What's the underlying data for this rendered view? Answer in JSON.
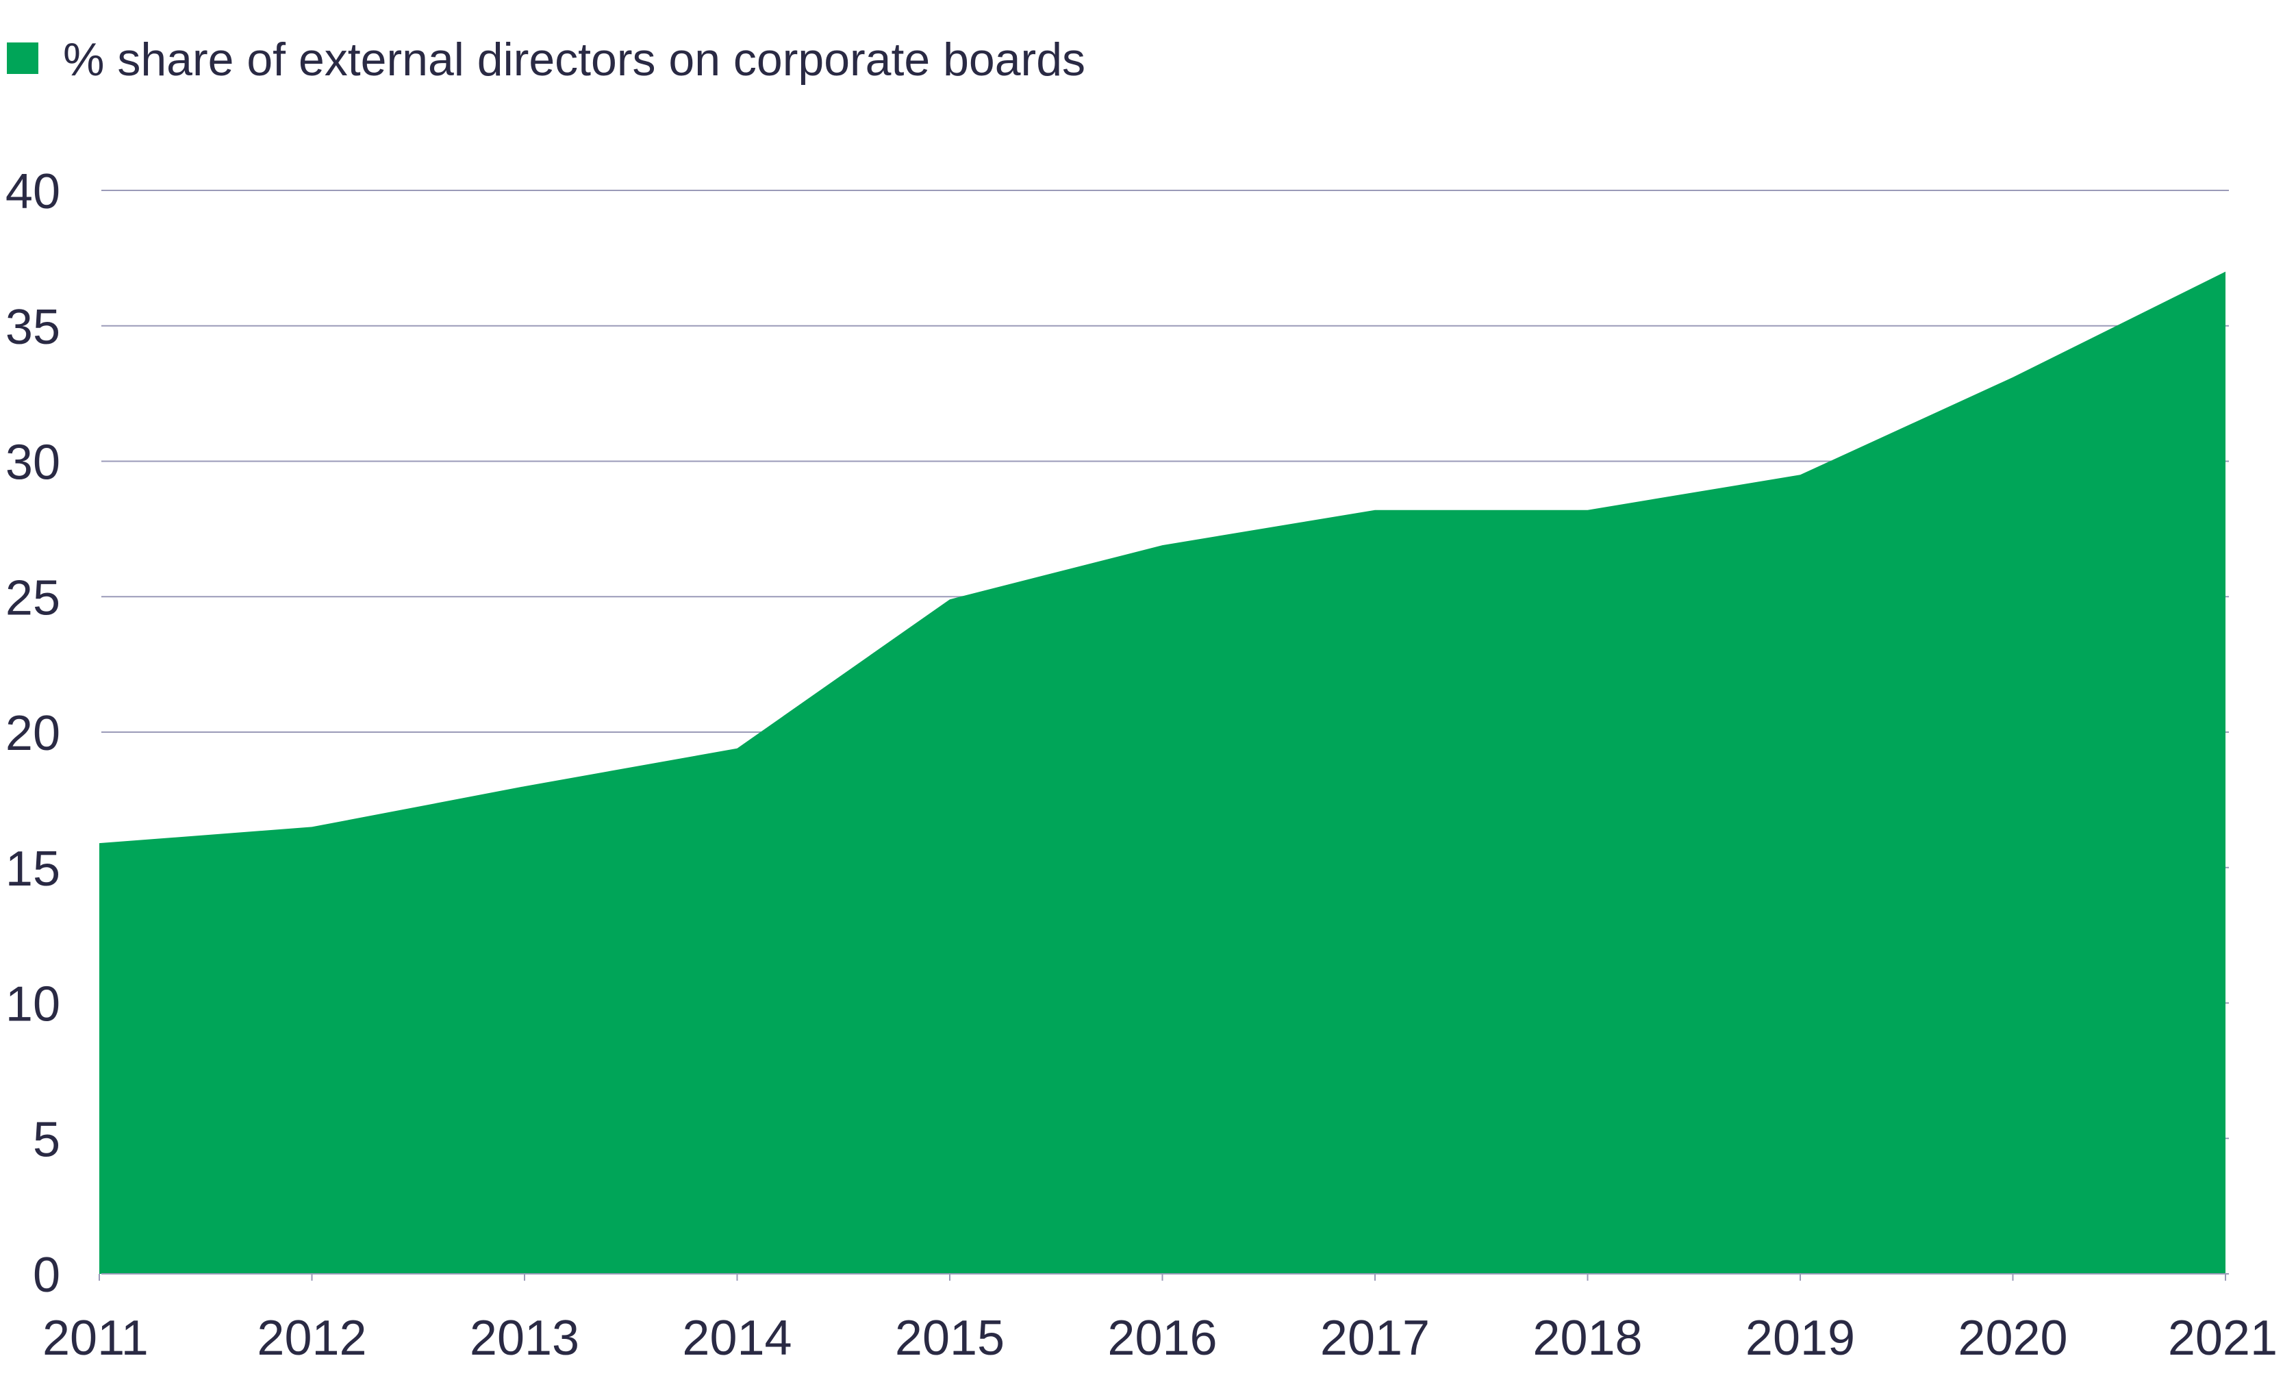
{
  "chart_data": {
    "type": "area",
    "title": "",
    "xlabel": "",
    "ylabel": "",
    "categories": [
      "2011",
      "2012",
      "2013",
      "2014",
      "2015",
      "2016",
      "2017",
      "2018",
      "2019",
      "2020",
      "2021"
    ],
    "series": [
      {
        "name": "% share of external directors on corporate boards",
        "values": [
          15.9,
          16.5,
          18.0,
          19.4,
          24.9,
          26.9,
          28.2,
          28.2,
          29.5,
          33.1,
          37.0
        ],
        "color": "#00a558"
      }
    ],
    "ylim": [
      0,
      40
    ],
    "yticks": [
      "0",
      "5",
      "10",
      "15",
      "20",
      "25",
      "30",
      "35",
      "40"
    ],
    "grid": "horizontal",
    "legend": "top-left"
  }
}
